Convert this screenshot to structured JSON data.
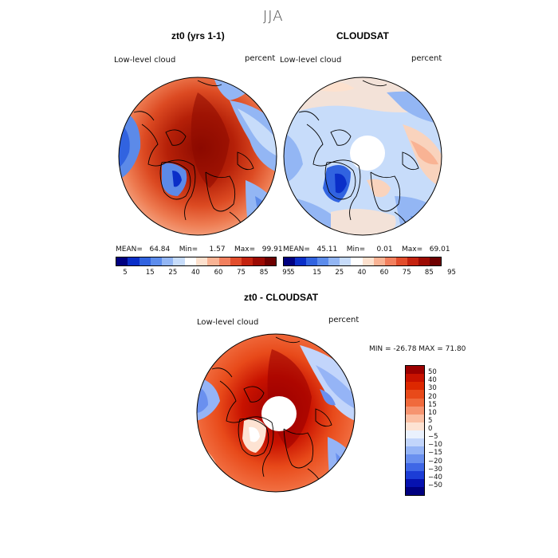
{
  "season": "JJA",
  "panels": [
    {
      "title": "zt0 (yrs 1-1)",
      "variable": "Low-level cloud",
      "units": "percent",
      "stats": {
        "mean_label": "MEAN=",
        "mean": "64.84",
        "min_label": "Min=",
        "min": "1.57",
        "max_label": "Max=",
        "max": "99.91"
      }
    },
    {
      "title": "CLOUDSAT",
      "variable": "Low-level cloud",
      "units": "percent",
      "stats": {
        "mean_label": "MEAN=",
        "mean": "45.11",
        "min_label": "Min=",
        "min": "0.01",
        "max_label": "Max=",
        "max": "69.01"
      }
    },
    {
      "title": "zt0 - CLOUDSAT",
      "variable": "Low-level cloud",
      "units": "percent",
      "minmax": "MIN = -26.78 MAX =  71.80"
    }
  ],
  "colorbar_top": {
    "ticks": [
      "5",
      "15",
      "25",
      "40",
      "60",
      "75",
      "85",
      "95"
    ],
    "colors": [
      "#000080",
      "#0a2ec8",
      "#3163e0",
      "#5c8cec",
      "#93b6f4",
      "#c7dcfa",
      "#ffffff",
      "#fde1ce",
      "#f9b394",
      "#f2805e",
      "#e24d2c",
      "#c4230f",
      "#9c0a03",
      "#6e0000"
    ]
  },
  "colorbar_diff": {
    "ticks": [
      "50",
      "40",
      "30",
      "20",
      "15",
      "10",
      "5",
      "0",
      "−5",
      "−10",
      "−15",
      "−20",
      "−30",
      "−40",
      "−50"
    ],
    "colors": [
      "#9c0000",
      "#c81200",
      "#dd2800",
      "#e84a1a",
      "#f06a3c",
      "#f69470",
      "#fbbfa3",
      "#fde3d3",
      "#eaf1fd",
      "#c2d5fb",
      "#95b4f6",
      "#6a90ef",
      "#3f67e6",
      "#1c3dd6",
      "#0612b0",
      "#000080"
    ]
  },
  "colors": {
    "land_red": "#c83a10",
    "deep_red": "#8c0a00",
    "light_blue": "#b6cdf6",
    "mid_blue": "#5c8ae8",
    "pale": "#f3e2d8"
  }
}
